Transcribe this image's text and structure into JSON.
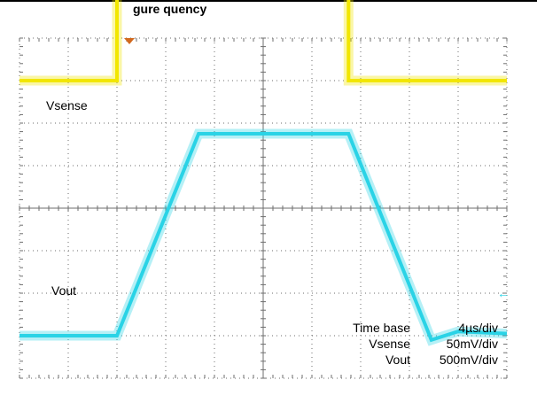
{
  "header": {
    "title_fragment": "gure        quency"
  },
  "chart_data": {
    "type": "line",
    "title": "",
    "x_unit": "µs",
    "x_divisions": 10,
    "y_divisions": 8,
    "grid": true,
    "xlim": [
      0,
      40
    ],
    "series": [
      {
        "name": "Vsense",
        "color": "#f2e600",
        "unit": "div",
        "x": [
          0,
          8.0,
          8.0,
          27.0,
          27.0,
          40
        ],
        "y": [
          3.0,
          3.0,
          5.25,
          5.25,
          3.0,
          3.0
        ]
      },
      {
        "name": "Vout",
        "color": "#2ad3e6",
        "unit": "div",
        "x": [
          0,
          8.0,
          14.7,
          27.0,
          33.8,
          36.0,
          40
        ],
        "y": [
          -3.0,
          -3.0,
          1.75,
          1.75,
          -3.1,
          -2.9,
          -2.95
        ]
      }
    ],
    "annotations": {
      "vsense_label": "Vsense",
      "vout_label": "Vout",
      "timebase_label": "Time base",
      "timebase_value": "4µs/div",
      "vsense_scale_label": "Vsense",
      "vsense_scale_value": "50mV/div",
      "vout_scale_label": "Vout",
      "vout_scale_value": "500mV/div"
    }
  },
  "colors": {
    "grid": "#6e6e6e",
    "trigger_marker": "#d2691e",
    "vout_marker": "#2ad3e6"
  }
}
